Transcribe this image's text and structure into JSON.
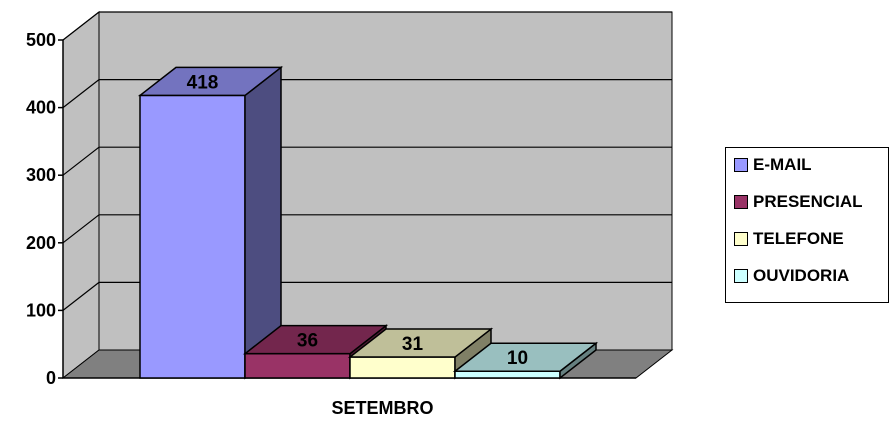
{
  "chart_data": {
    "type": "bar",
    "categories": [
      "SETEMBRO"
    ],
    "series": [
      {
        "name": "E-MAIL",
        "values": [
          418
        ],
        "color": "#9999FF"
      },
      {
        "name": "PRESENCIAL",
        "values": [
          36
        ],
        "color": "#993366"
      },
      {
        "name": "TELEFONE",
        "values": [
          31
        ],
        "color": "#FFFFCC"
      },
      {
        "name": "OUVIDORIA",
        "values": [
          10
        ],
        "color": "#CCFFFF"
      }
    ],
    "title": "",
    "xlabel": "",
    "ylabel": "",
    "ylim": [
      0,
      500
    ],
    "yticks": [
      0,
      100,
      200,
      300,
      400,
      500
    ],
    "grid": true,
    "three_d": true,
    "data_labels": true,
    "legend_position": "right",
    "wall_color": "#C0C0C0",
    "floor_color": "#808080"
  }
}
